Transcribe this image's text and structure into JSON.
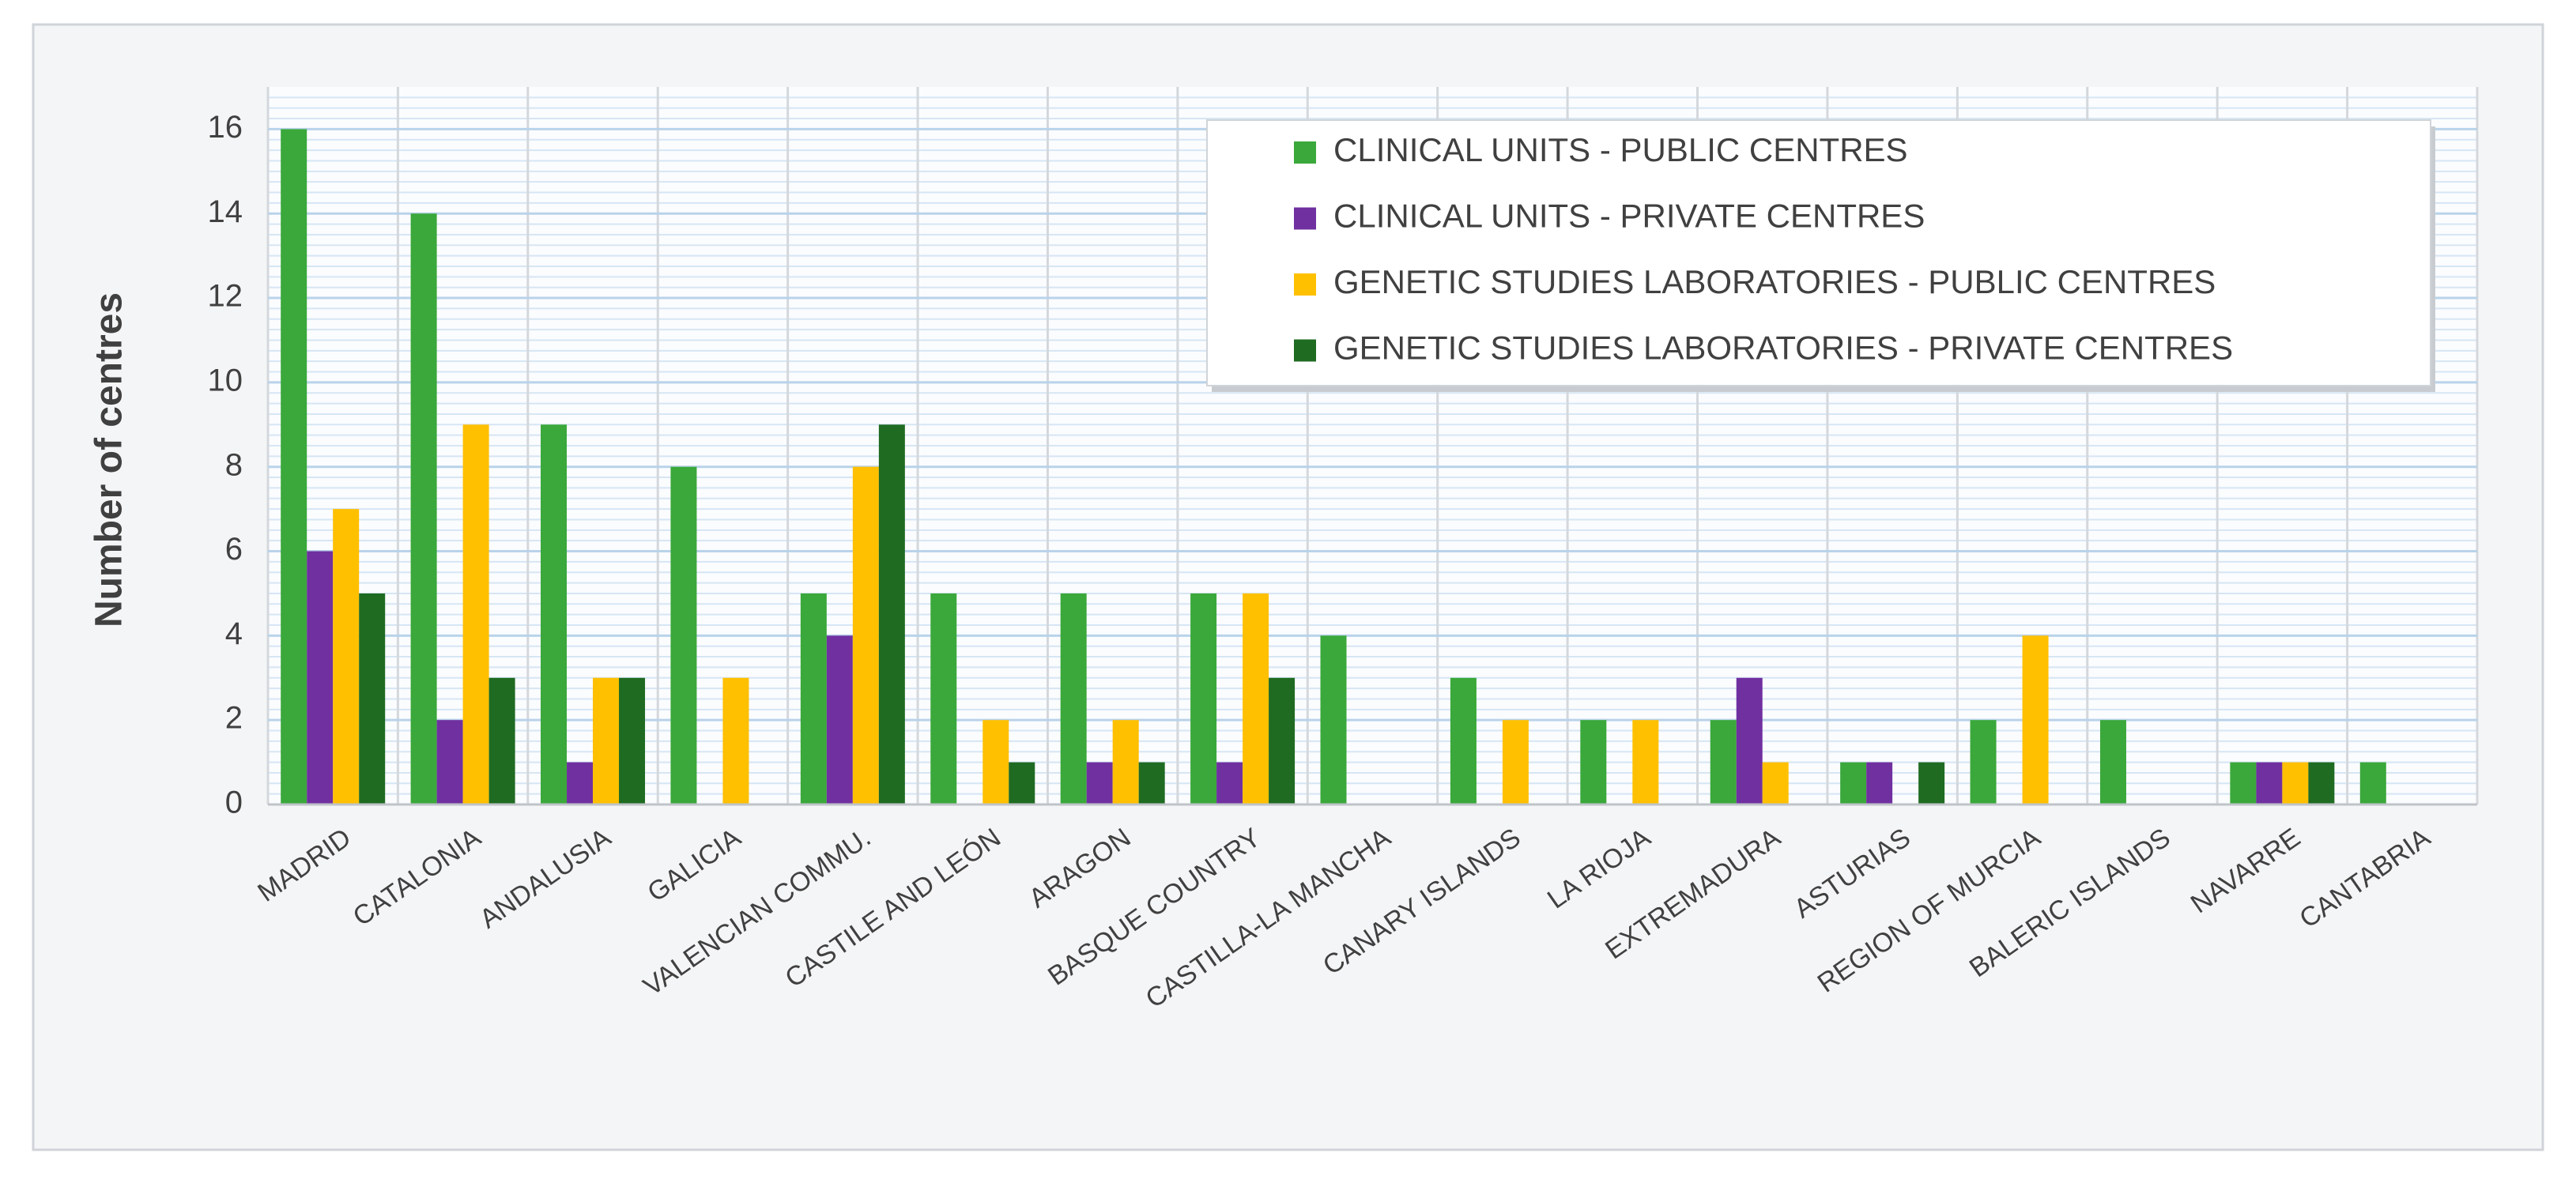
{
  "chart_data": {
    "type": "bar",
    "ylabel": "Number of centres",
    "categories": [
      "MADRID",
      "CATALONIA",
      "ANDALUSIA",
      "GALICIA",
      "VALENCIAN COMMU.",
      "CASTILE AND LEÓN",
      "ARAGON",
      "BASQUE COUNTRY",
      "CASTILLA-LA MANCHA",
      "CANARY ISLANDS",
      "LA RIOJA",
      "EXTREMADURA",
      "ASTURIAS",
      "REGION OF MURCIA",
      "BALERIC ISLANDS",
      "NAVARRE",
      "CANTABRIA"
    ],
    "series": [
      {
        "name": "CLINICAL UNITS - PUBLIC CENTRES",
        "color": "#3aa83a",
        "values": [
          16,
          14,
          9,
          8,
          5,
          5,
          5,
          5,
          4,
          3,
          2,
          2,
          1,
          2,
          2,
          1,
          1
        ]
      },
      {
        "name": "CLINICAL UNITS - PRIVATE CENTRES",
        "color": "#7030a0",
        "values": [
          6,
          2,
          1,
          0,
          4,
          0,
          1,
          1,
          0,
          0,
          0,
          3,
          1,
          0,
          0,
          1,
          0
        ]
      },
      {
        "name": "GENETIC STUDIES LABORATORIES - PUBLIC CENTRES",
        "color": "#ffc000",
        "values": [
          7,
          9,
          3,
          3,
          8,
          2,
          2,
          5,
          0,
          2,
          2,
          1,
          0,
          4,
          0,
          1,
          0
        ]
      },
      {
        "name": "GENETIC STUDIES LABORATORIES - PRIVATE CENTRES",
        "color": "#1f6b22",
        "values": [
          5,
          3,
          3,
          0,
          9,
          1,
          1,
          3,
          0,
          0,
          0,
          0,
          1,
          0,
          0,
          1,
          0
        ]
      }
    ],
    "ylim": [
      0,
      17
    ],
    "yticks": [
      0,
      2,
      4,
      6,
      8,
      10,
      12,
      14,
      16
    ],
    "grid": true,
    "legend": "top-right"
  }
}
